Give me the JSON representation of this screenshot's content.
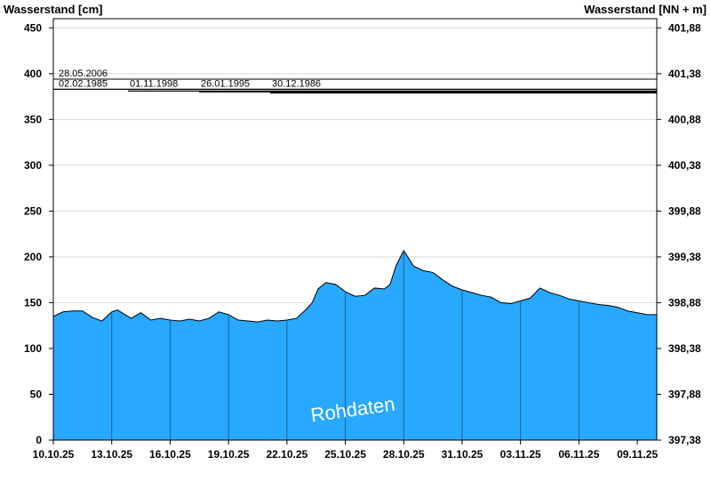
{
  "chart_data": {
    "type": "area",
    "ylabel_left": "Wasserstand [cm]",
    "ylabel_right": "Wasserstand [NN + m]",
    "watermark": "Rohdaten",
    "ylim": [
      0,
      460
    ],
    "yticks_left": [
      "0",
      "50",
      "100",
      "150",
      "200",
      "250",
      "300",
      "350",
      "400",
      "450"
    ],
    "yticks_left_values": [
      0,
      50,
      100,
      150,
      200,
      250,
      300,
      350,
      400,
      450
    ],
    "yticks_right": [
      "397,38",
      "397,88",
      "398,38",
      "398,88",
      "399,38",
      "399,88",
      "400,38",
      "400,88",
      "401,38",
      "401,88"
    ],
    "xlim": [
      "10.10.25",
      "09.11.25"
    ],
    "xticks": [
      "10.10.25",
      "13.10.25",
      "16.10.25",
      "19.10.25",
      "22.10.25",
      "25.10.25",
      "28.10.25",
      "31.10.25",
      "03.11.25",
      "06.11.25",
      "09.11.25"
    ],
    "grid": true,
    "fill_color": "#29a8ff",
    "reference_lines": [
      {
        "label": "28.05.2006",
        "value": 394
      },
      {
        "label": "02.02.1985",
        "value": 383
      },
      {
        "label": "01.11.1998",
        "value": 381
      },
      {
        "label": "26.01.1995",
        "value": 380
      },
      {
        "label": "30.12.1986",
        "value": 379
      }
    ],
    "series": [
      {
        "x_days": [
          0,
          0.5,
          1,
          1.5,
          2,
          2.5,
          3,
          3.3,
          3.6,
          4,
          4.5,
          5,
          5.5,
          6,
          6.5,
          7,
          7.5,
          8,
          8.5,
          9,
          9.5,
          10,
          10.5,
          11,
          11.5,
          12,
          12.5,
          13,
          13.3,
          13.6,
          14,
          14.5,
          15,
          15.5,
          16,
          16.5,
          17,
          17.3,
          17.6,
          18,
          18.5,
          19,
          19.5,
          20,
          20.5,
          21,
          21.5,
          22,
          22.5,
          23,
          23.5,
          24,
          24.5,
          25,
          25.5,
          26,
          26.5,
          27,
          27.5,
          28,
          28.5,
          29,
          29.5,
          30,
          30.5,
          31
        ],
        "values": [
          135,
          140,
          141,
          141,
          134,
          130,
          140,
          142,
          138,
          133,
          139,
          131,
          133,
          131,
          130,
          132,
          130,
          133,
          140,
          137,
          131,
          130,
          129,
          131,
          130,
          131,
          133,
          143,
          150,
          165,
          172,
          170,
          162,
          157,
          158,
          166,
          165,
          170,
          190,
          207,
          190,
          185,
          183,
          175,
          168,
          164,
          161,
          158,
          156,
          150,
          149,
          152,
          155,
          166,
          161,
          158,
          154,
          152,
          150,
          148,
          147,
          145,
          141,
          139,
          137,
          137
        ]
      }
    ]
  }
}
